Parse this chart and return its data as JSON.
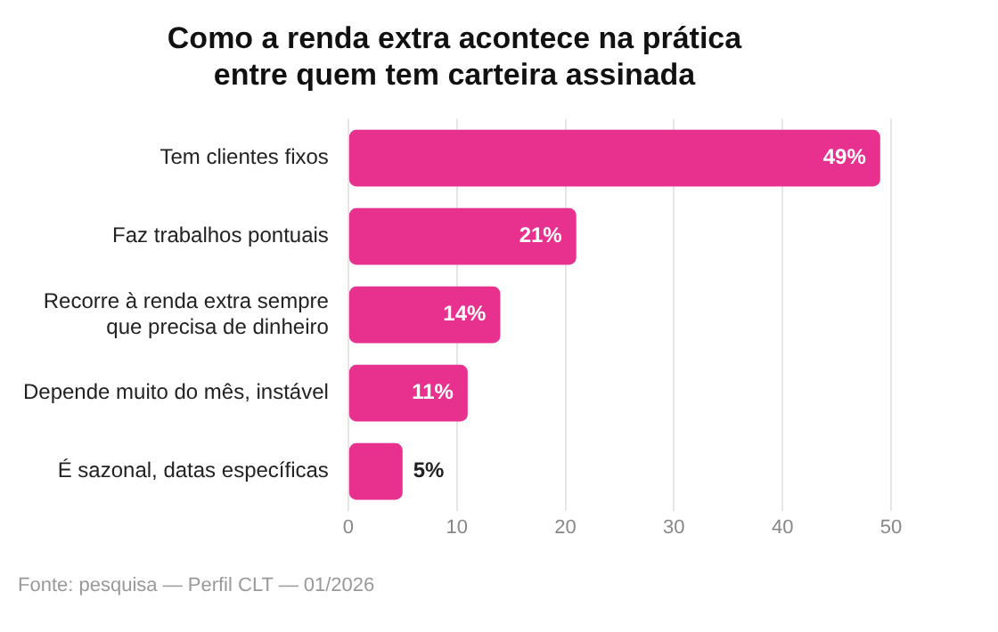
{
  "chart_data": {
    "type": "bar",
    "orientation": "horizontal",
    "title": "Como a renda extra acontece na prática entre quem tem carteira assinada",
    "categories": [
      "Tem clientes fixos",
      "Faz trabalhos pontuais",
      "Recorre à renda extra sempre que precisa de dinheiro",
      "Depende muito do mês, instável",
      "É sazonal, datas específicas"
    ],
    "values": [
      49,
      21,
      14,
      11,
      5
    ],
    "value_labels": [
      "49%",
      "21%",
      "14%",
      "11%",
      "5%"
    ],
    "color": "#e8308f",
    "xlim": [
      0,
      50
    ],
    "xticks": [
      0,
      10,
      20,
      30,
      40,
      50
    ],
    "grid": "x",
    "legend": false,
    "annotations": [
      "Fonte: pesquisa — Perfil CLT — 01/2026"
    ]
  }
}
